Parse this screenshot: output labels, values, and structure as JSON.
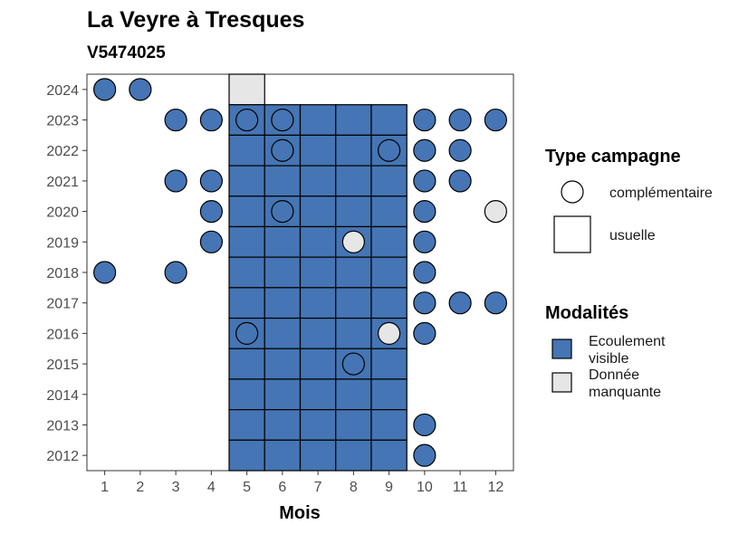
{
  "chart_data": {
    "type": "heatmap",
    "title": "La Veyre à Tresques",
    "subtitle": "V5474025",
    "xlabel": "Mois",
    "ylabel": "",
    "x_ticks": [
      1,
      2,
      3,
      4,
      5,
      6,
      7,
      8,
      9,
      10,
      11,
      12
    ],
    "y_ticks": [
      2012,
      2013,
      2014,
      2015,
      2016,
      2017,
      2018,
      2019,
      2020,
      2021,
      2022,
      2023,
      2024
    ],
    "xlim": [
      0.5,
      12.5
    ],
    "ylim": [
      2011.5,
      2024.5
    ],
    "colors": {
      "Ecoulement visible": "#4575b4",
      "Donnée manquante": "#e6e6e6"
    },
    "legend_type": {
      "title": "Type campagne",
      "items": [
        {
          "label": "complémentaire",
          "shape": "circle"
        },
        {
          "label": "usuelle",
          "shape": "square"
        }
      ]
    },
    "legend_modalites": {
      "title": "Modalités",
      "items": [
        {
          "label_lines": [
            "Ecoulement",
            "visible"
          ],
          "color": "#4575b4"
        },
        {
          "label_lines": [
            "Donnée",
            "manquante"
          ],
          "color": "#e6e6e6"
        }
      ]
    },
    "usuelle": [
      {
        "year": 2024,
        "months": [
          5
        ],
        "modalite": "Donnée manquante"
      },
      {
        "year": 2023,
        "months": [
          5,
          6,
          7,
          8,
          9
        ],
        "modalite": "Ecoulement visible"
      },
      {
        "year": 2022,
        "months": [
          5,
          6,
          7,
          8,
          9
        ],
        "modalite": "Ecoulement visible"
      },
      {
        "year": 2021,
        "months": [
          5,
          6,
          7,
          8,
          9
        ],
        "modalite": "Ecoulement visible"
      },
      {
        "year": 2020,
        "months": [
          5,
          6,
          7,
          8,
          9
        ],
        "modalite": "Ecoulement visible"
      },
      {
        "year": 2019,
        "months": [
          5,
          6,
          7,
          8,
          9
        ],
        "modalite": "Ecoulement visible"
      },
      {
        "year": 2018,
        "months": [
          5,
          6,
          7,
          8,
          9
        ],
        "modalite": "Ecoulement visible"
      },
      {
        "year": 2017,
        "months": [
          5,
          6,
          7,
          8,
          9
        ],
        "modalite": "Ecoulement visible"
      },
      {
        "year": 2016,
        "months": [
          5,
          6,
          7,
          8,
          9
        ],
        "modalite": "Ecoulement visible"
      },
      {
        "year": 2015,
        "months": [
          5,
          6,
          7,
          8,
          9
        ],
        "modalite": "Ecoulement visible"
      },
      {
        "year": 2014,
        "months": [
          5,
          6,
          7,
          8,
          9
        ],
        "modalite": "Ecoulement visible"
      },
      {
        "year": 2013,
        "months": [
          5,
          6,
          7,
          8,
          9
        ],
        "modalite": "Ecoulement visible"
      },
      {
        "year": 2012,
        "months": [
          5,
          6,
          7,
          8,
          9
        ],
        "modalite": "Ecoulement visible"
      }
    ],
    "complementaire": [
      {
        "year": 2024,
        "month": 1,
        "modalite": "Ecoulement visible"
      },
      {
        "year": 2024,
        "month": 2,
        "modalite": "Ecoulement visible"
      },
      {
        "year": 2023,
        "month": 3,
        "modalite": "Ecoulement visible"
      },
      {
        "year": 2023,
        "month": 4,
        "modalite": "Ecoulement visible"
      },
      {
        "year": 2023,
        "month": 5,
        "modalite": "Ecoulement visible"
      },
      {
        "year": 2023,
        "month": 6,
        "modalite": "Ecoulement visible"
      },
      {
        "year": 2023,
        "month": 10,
        "modalite": "Ecoulement visible"
      },
      {
        "year": 2023,
        "month": 11,
        "modalite": "Ecoulement visible"
      },
      {
        "year": 2023,
        "month": 12,
        "modalite": "Ecoulement visible"
      },
      {
        "year": 2022,
        "month": 6,
        "modalite": "Ecoulement visible"
      },
      {
        "year": 2022,
        "month": 9,
        "modalite": "Ecoulement visible"
      },
      {
        "year": 2022,
        "month": 10,
        "modalite": "Ecoulement visible"
      },
      {
        "year": 2022,
        "month": 11,
        "modalite": "Ecoulement visible"
      },
      {
        "year": 2021,
        "month": 3,
        "modalite": "Ecoulement visible"
      },
      {
        "year": 2021,
        "month": 4,
        "modalite": "Ecoulement visible"
      },
      {
        "year": 2021,
        "month": 10,
        "modalite": "Ecoulement visible"
      },
      {
        "year": 2021,
        "month": 11,
        "modalite": "Ecoulement visible"
      },
      {
        "year": 2020,
        "month": 4,
        "modalite": "Ecoulement visible"
      },
      {
        "year": 2020,
        "month": 6,
        "modalite": "Ecoulement visible"
      },
      {
        "year": 2020,
        "month": 10,
        "modalite": "Ecoulement visible"
      },
      {
        "year": 2020,
        "month": 12,
        "modalite": "Donnée manquante"
      },
      {
        "year": 2019,
        "month": 4,
        "modalite": "Ecoulement visible"
      },
      {
        "year": 2019,
        "month": 8,
        "modalite": "Donnée manquante"
      },
      {
        "year": 2019,
        "month": 10,
        "modalite": "Ecoulement visible"
      },
      {
        "year": 2018,
        "month": 1,
        "modalite": "Ecoulement visible"
      },
      {
        "year": 2018,
        "month": 3,
        "modalite": "Ecoulement visible"
      },
      {
        "year": 2018,
        "month": 10,
        "modalite": "Ecoulement visible"
      },
      {
        "year": 2017,
        "month": 10,
        "modalite": "Ecoulement visible"
      },
      {
        "year": 2017,
        "month": 11,
        "modalite": "Ecoulement visible"
      },
      {
        "year": 2017,
        "month": 12,
        "modalite": "Ecoulement visible"
      },
      {
        "year": 2016,
        "month": 5,
        "modalite": "Ecoulement visible"
      },
      {
        "year": 2016,
        "month": 9,
        "modalite": "Donnée manquante"
      },
      {
        "year": 2016,
        "month": 10,
        "modalite": "Ecoulement visible"
      },
      {
        "year": 2015,
        "month": 8,
        "modalite": "Ecoulement visible"
      },
      {
        "year": 2013,
        "month": 10,
        "modalite": "Ecoulement visible"
      },
      {
        "year": 2012,
        "month": 10,
        "modalite": "Ecoulement visible"
      }
    ]
  }
}
